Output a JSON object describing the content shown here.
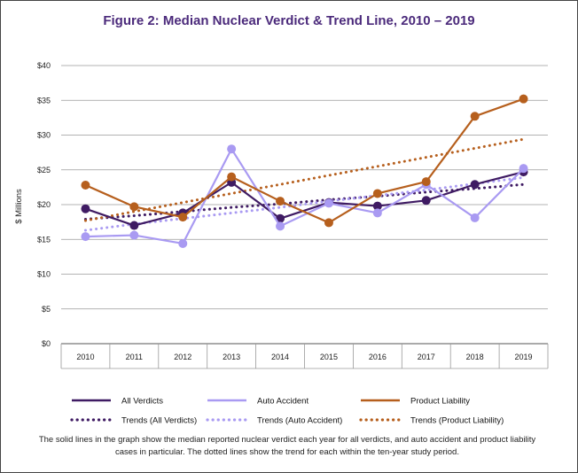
{
  "chart_data": {
    "type": "line",
    "title": "Figure 2: Median Nuclear Verdict & Trend Line, 2010 – 2019",
    "ylabel": "$ Millions",
    "ylim": [
      0,
      40
    ],
    "yticks": [
      "$0",
      "$5",
      "$10",
      "$15",
      "$20",
      "$25",
      "$30",
      "$35",
      "$40"
    ],
    "ytick_values": [
      0,
      5,
      10,
      15,
      20,
      25,
      30,
      35,
      40
    ],
    "categories": [
      "2010",
      "2011",
      "2012",
      "2013",
      "2014",
      "2015",
      "2016",
      "2017",
      "2018",
      "2019"
    ],
    "grid": true,
    "legend_position": "bottom",
    "series": [
      {
        "name": "All Verdicts",
        "style": "solid",
        "color": "#3f1b63",
        "values": [
          19.4,
          17.0,
          18.8,
          23.2,
          18.0,
          20.3,
          19.8,
          20.6,
          22.9,
          24.7
        ]
      },
      {
        "name": "Auto Accident",
        "style": "solid",
        "color": "#a99af2",
        "values": [
          15.4,
          15.6,
          14.4,
          28.0,
          16.9,
          20.2,
          18.8,
          22.9,
          18.1,
          25.2
        ]
      },
      {
        "name": "Product Liability",
        "style": "solid",
        "color": "#b65f1d",
        "values": [
          22.8,
          19.7,
          18.2,
          24.0,
          20.5,
          17.4,
          21.6,
          23.3,
          32.7,
          35.2
        ]
      },
      {
        "name": "Trends (All Verdicts)",
        "style": "dotted",
        "color": "#3f1b63",
        "values": [
          17.9,
          18.4,
          19.0,
          19.6,
          20.1,
          20.7,
          21.2,
          21.8,
          22.3,
          22.9
        ]
      },
      {
        "name": "Trends (Auto Accident)",
        "style": "dotted",
        "color": "#a99af2",
        "values": [
          16.3,
          17.2,
          18.0,
          18.8,
          19.6,
          20.5,
          21.3,
          22.1,
          23.0,
          23.9
        ]
      },
      {
        "name": "Trends (Product Liability)",
        "style": "dotted",
        "color": "#b65f1d",
        "values": [
          17.7,
          19.0,
          20.3,
          21.6,
          22.9,
          24.2,
          25.5,
          26.8,
          28.1,
          29.4
        ]
      }
    ],
    "caption": "The solid lines in the graph show the median reported nuclear verdict each year for all verdicts, and auto accident and product liability cases in particular. The dotted lines show the trend for each within the ten-year study period."
  }
}
